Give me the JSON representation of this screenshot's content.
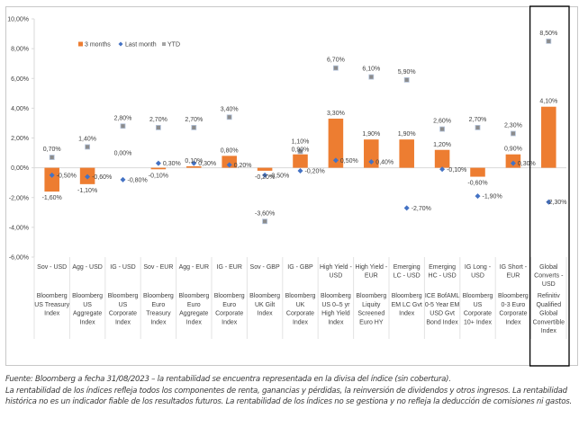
{
  "chart_data": {
    "type": "bar",
    "title": "",
    "xlabel": "",
    "ylabel": "",
    "ylim": [
      -6,
      10
    ],
    "yticks": [
      10,
      8,
      6,
      4,
      2,
      0,
      -2,
      -4,
      -6
    ],
    "ytick_labels": [
      "10,00%",
      "8,00%",
      "6,00%",
      "4,00%",
      "2,00%",
      "0,00%",
      "-2,00%",
      "-4,00%",
      "-6,00%"
    ],
    "grid": false,
    "legend_position": "top-left",
    "categories": [
      "Sov - USD",
      "Agg - USD",
      "IG - USD",
      "Sov - EUR",
      "Agg - EUR",
      "IG - EUR",
      "Sov - GBP",
      "IG - GBP",
      "High Yield - USD",
      "High Yield - EUR",
      "Emerging LC - USD",
      "Emerging HC - USD",
      "IG Long - USD",
      "IG Short - EUR",
      "Global Converts - USD"
    ],
    "category_lines": [
      [
        "Sov - USD"
      ],
      [
        "Agg - USD"
      ],
      [
        "IG - USD"
      ],
      [
        "Sov - EUR"
      ],
      [
        "Agg - EUR"
      ],
      [
        "IG - EUR"
      ],
      [
        "Sov - GBP"
      ],
      [
        "IG - GBP"
      ],
      [
        "High Yield -",
        "USD"
      ],
      [
        "High Yield -",
        "EUR"
      ],
      [
        "Emerging",
        "LC - USD"
      ],
      [
        "Emerging",
        "HC - USD"
      ],
      [
        "IG Long -",
        "USD"
      ],
      [
        "IG Short -",
        "EUR"
      ],
      [
        "Global",
        "Converts -",
        "USD"
      ]
    ],
    "index_names": [
      [
        "Bloomberg",
        "US Treasury",
        "Index"
      ],
      [
        "Bloomberg",
        "US",
        "Aggregate",
        "Index"
      ],
      [
        "Bloomberg",
        "US",
        "Corporate",
        "Index"
      ],
      [
        "Bloomberg",
        "Euro",
        "Treasury",
        "Index"
      ],
      [
        "Bloomberg",
        "Euro",
        "Aggregate",
        "Index"
      ],
      [
        "Bloomberg",
        "Euro",
        "Corporate",
        "Index"
      ],
      [
        "Bloomberg",
        "UK Gilt",
        "Index"
      ],
      [
        "Bloomberg",
        "UK",
        "Corporate",
        "Index"
      ],
      [
        "Bloomberg",
        "US 0–5 yr",
        "High Yield",
        "Index"
      ],
      [
        "Bloomberg",
        "Liquity",
        "Screened",
        "Euro HY"
      ],
      [
        "Bloomberg",
        "EM LC Gvt",
        "Index"
      ],
      [
        "ICE BofAML",
        "0-5 Year EM",
        "USD Gvt",
        "Bond Index"
      ],
      [
        "Bloomberg",
        "US",
        "Corporate",
        "10+ Index"
      ],
      [
        "Bloomberg",
        "0-3 Euro",
        "Corporate",
        "Index"
      ],
      [
        "Refinitiv",
        "Qualified",
        "Global",
        "Convertible",
        "Index"
      ]
    ],
    "highlighted_category": "Global Converts - USD",
    "series": [
      {
        "name": "3 months",
        "type": "bar",
        "color": "#ED7D31",
        "values": [
          -1.6,
          -1.1,
          0.0,
          -0.1,
          0.1,
          0.8,
          -0.2,
          0.9,
          3.3,
          1.9,
          1.9,
          1.2,
          -0.6,
          0.9,
          4.1
        ],
        "labels": [
          "-1,60%",
          "-1,10%",
          "0,00%",
          "-0,10%",
          "0,10%",
          "0,80%",
          "-0,20%",
          "0,90%",
          "3,30%",
          "1,90%",
          "1,90%",
          "1,20%",
          "-0,60%",
          "0,90%",
          "4,10%"
        ]
      },
      {
        "name": "Last month",
        "type": "scatter",
        "marker": "diamond",
        "color": "#4472C4",
        "values": [
          -0.5,
          -0.6,
          -0.8,
          0.3,
          0.3,
          0.2,
          -0.5,
          -0.2,
          0.5,
          0.4,
          -2.7,
          -0.1,
          -1.9,
          0.3,
          -2.3
        ],
        "labels": [
          "-0,50%",
          "-0,60%",
          "-0,80%",
          "0,30%",
          "0,30%",
          "0,20%",
          "-0,50%",
          "-0,20%",
          "0,50%",
          "0,40%",
          "-2,70%",
          "-0,10%",
          "-1,90%",
          "0,30%",
          "-2,30%"
        ]
      },
      {
        "name": "YTD",
        "type": "scatter",
        "marker": "square",
        "color": "#A5A5A5",
        "values": [
          0.7,
          1.4,
          2.8,
          2.7,
          2.7,
          3.4,
          -3.6,
          1.1,
          6.7,
          6.1,
          5.9,
          2.6,
          2.7,
          2.3,
          8.5
        ],
        "labels": [
          "0,70%",
          "1,40%",
          "2,80%",
          "2,70%",
          "2,70%",
          "3,40%",
          "-3,60%",
          "1,10%",
          "6,70%",
          "6,10%",
          "5,90%",
          "2,60%",
          "2,70%",
          "2,30%",
          "8,50%"
        ]
      }
    ]
  },
  "footnote": {
    "line1": "Fuente: Bloomberg a fecha 31/08/2023 – la rentabilidad se encuentra representada en la divisa del índice (sin cobertura).",
    "line2": "La rentabilidad de los índices refleja todos los componentes de renta, ganancias y pérdidas, la reinversión de dividendos y otros ingresos. La rentabilidad histórica no es un indicador fiable de los resultados futuros. La rentabilidad de los índices no se gestiona y no refleja la deducción de comisiones ni gastos."
  }
}
